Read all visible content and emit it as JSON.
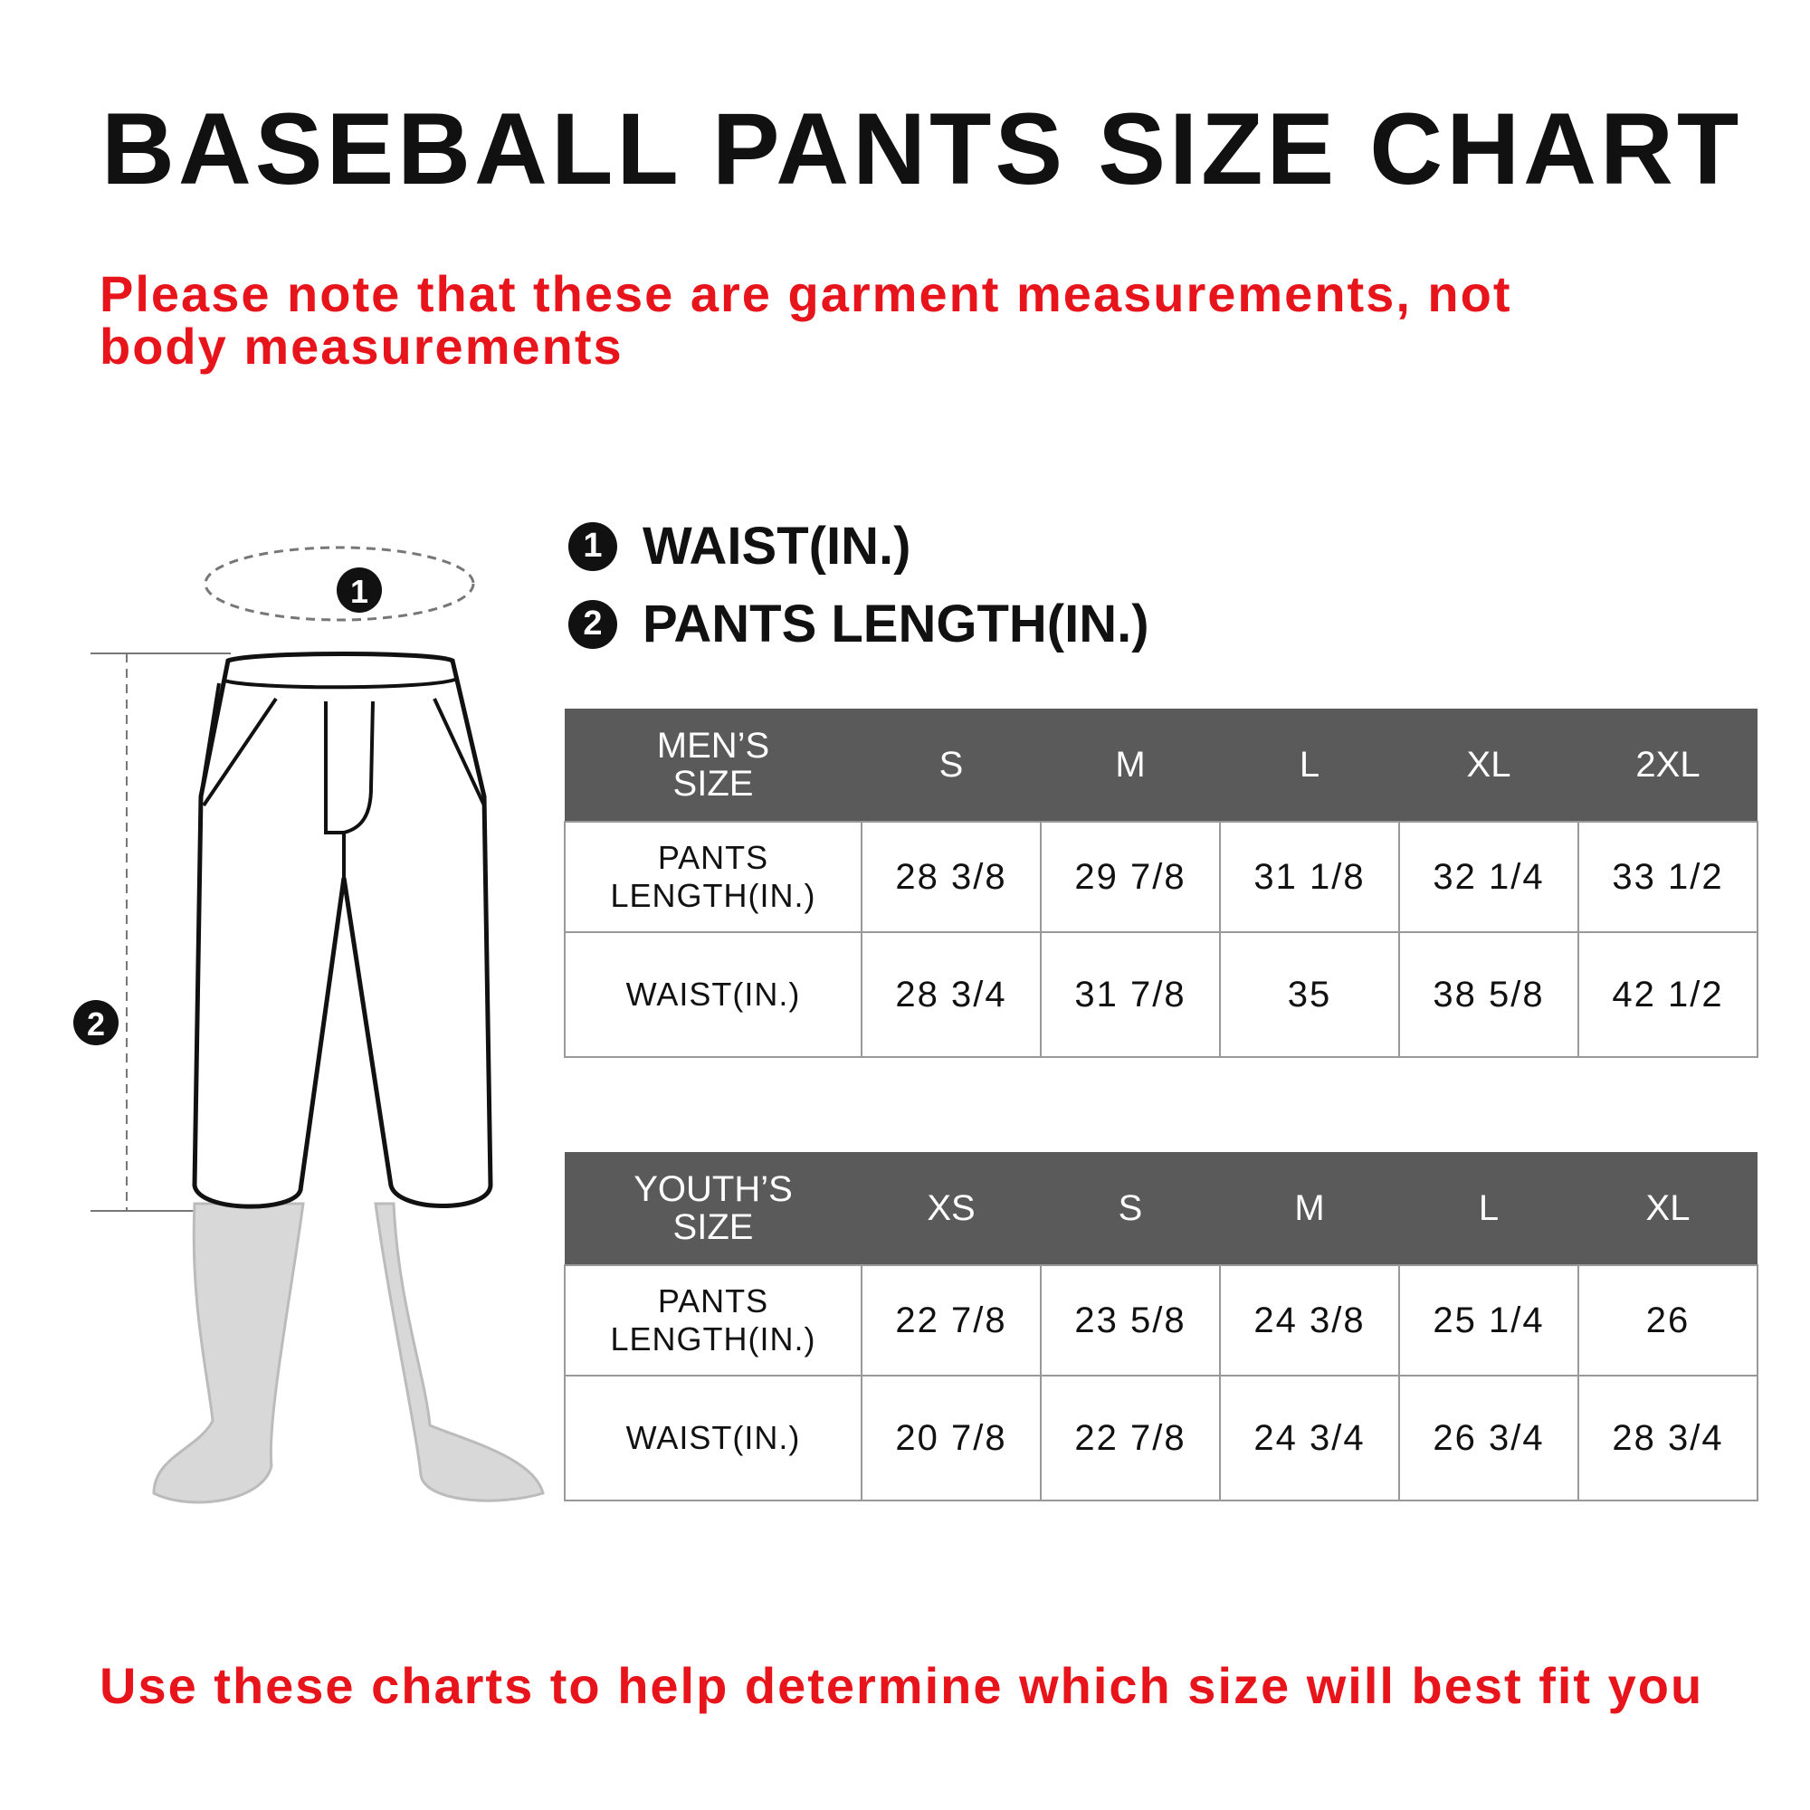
{
  "title": "BASEBALL PANTS SIZE CHART",
  "note": "Please note that these are garment measurements, not body measurements",
  "legend": [
    {
      "number": "1",
      "label": "WAIST(IN.)"
    },
    {
      "number": "2",
      "label": "PANTS LENGTH(IN.)"
    }
  ],
  "diagram": {
    "waist_marker": "1",
    "length_marker": "2"
  },
  "mens_table": {
    "header": [
      "MEN’S SIZE",
      "S",
      "M",
      "L",
      "XL",
      "2XL"
    ],
    "rows": [
      {
        "label": "PANTS LENGTH(IN.)",
        "values": [
          "28 3/8",
          "29 7/8",
          "31 1/8",
          "32 1/4",
          "33 1/2"
        ]
      },
      {
        "label": "WAIST(IN.)",
        "values": [
          "28 3/4",
          "31 7/8",
          "35",
          "38 5/8",
          "42 1/2"
        ]
      }
    ]
  },
  "youth_table": {
    "header": [
      "YOUTH’S SIZE",
      "XS",
      "S",
      "M",
      "L",
      "XL"
    ],
    "rows": [
      {
        "label": "PANTS LENGTH(IN.)",
        "values": [
          "22 7/8",
          "23 5/8",
          "24 3/8",
          "25 1/4",
          "26"
        ]
      },
      {
        "label": "WAIST(IN.)",
        "values": [
          "20 7/8",
          "22 7/8",
          "24 3/4",
          "26 3/4",
          "28 3/4"
        ]
      }
    ]
  },
  "footer_note": "Use these charts to help determine which size will best fit you",
  "colors": {
    "accent_red": "#e8141b",
    "header_gray": "#5a5a5a"
  }
}
